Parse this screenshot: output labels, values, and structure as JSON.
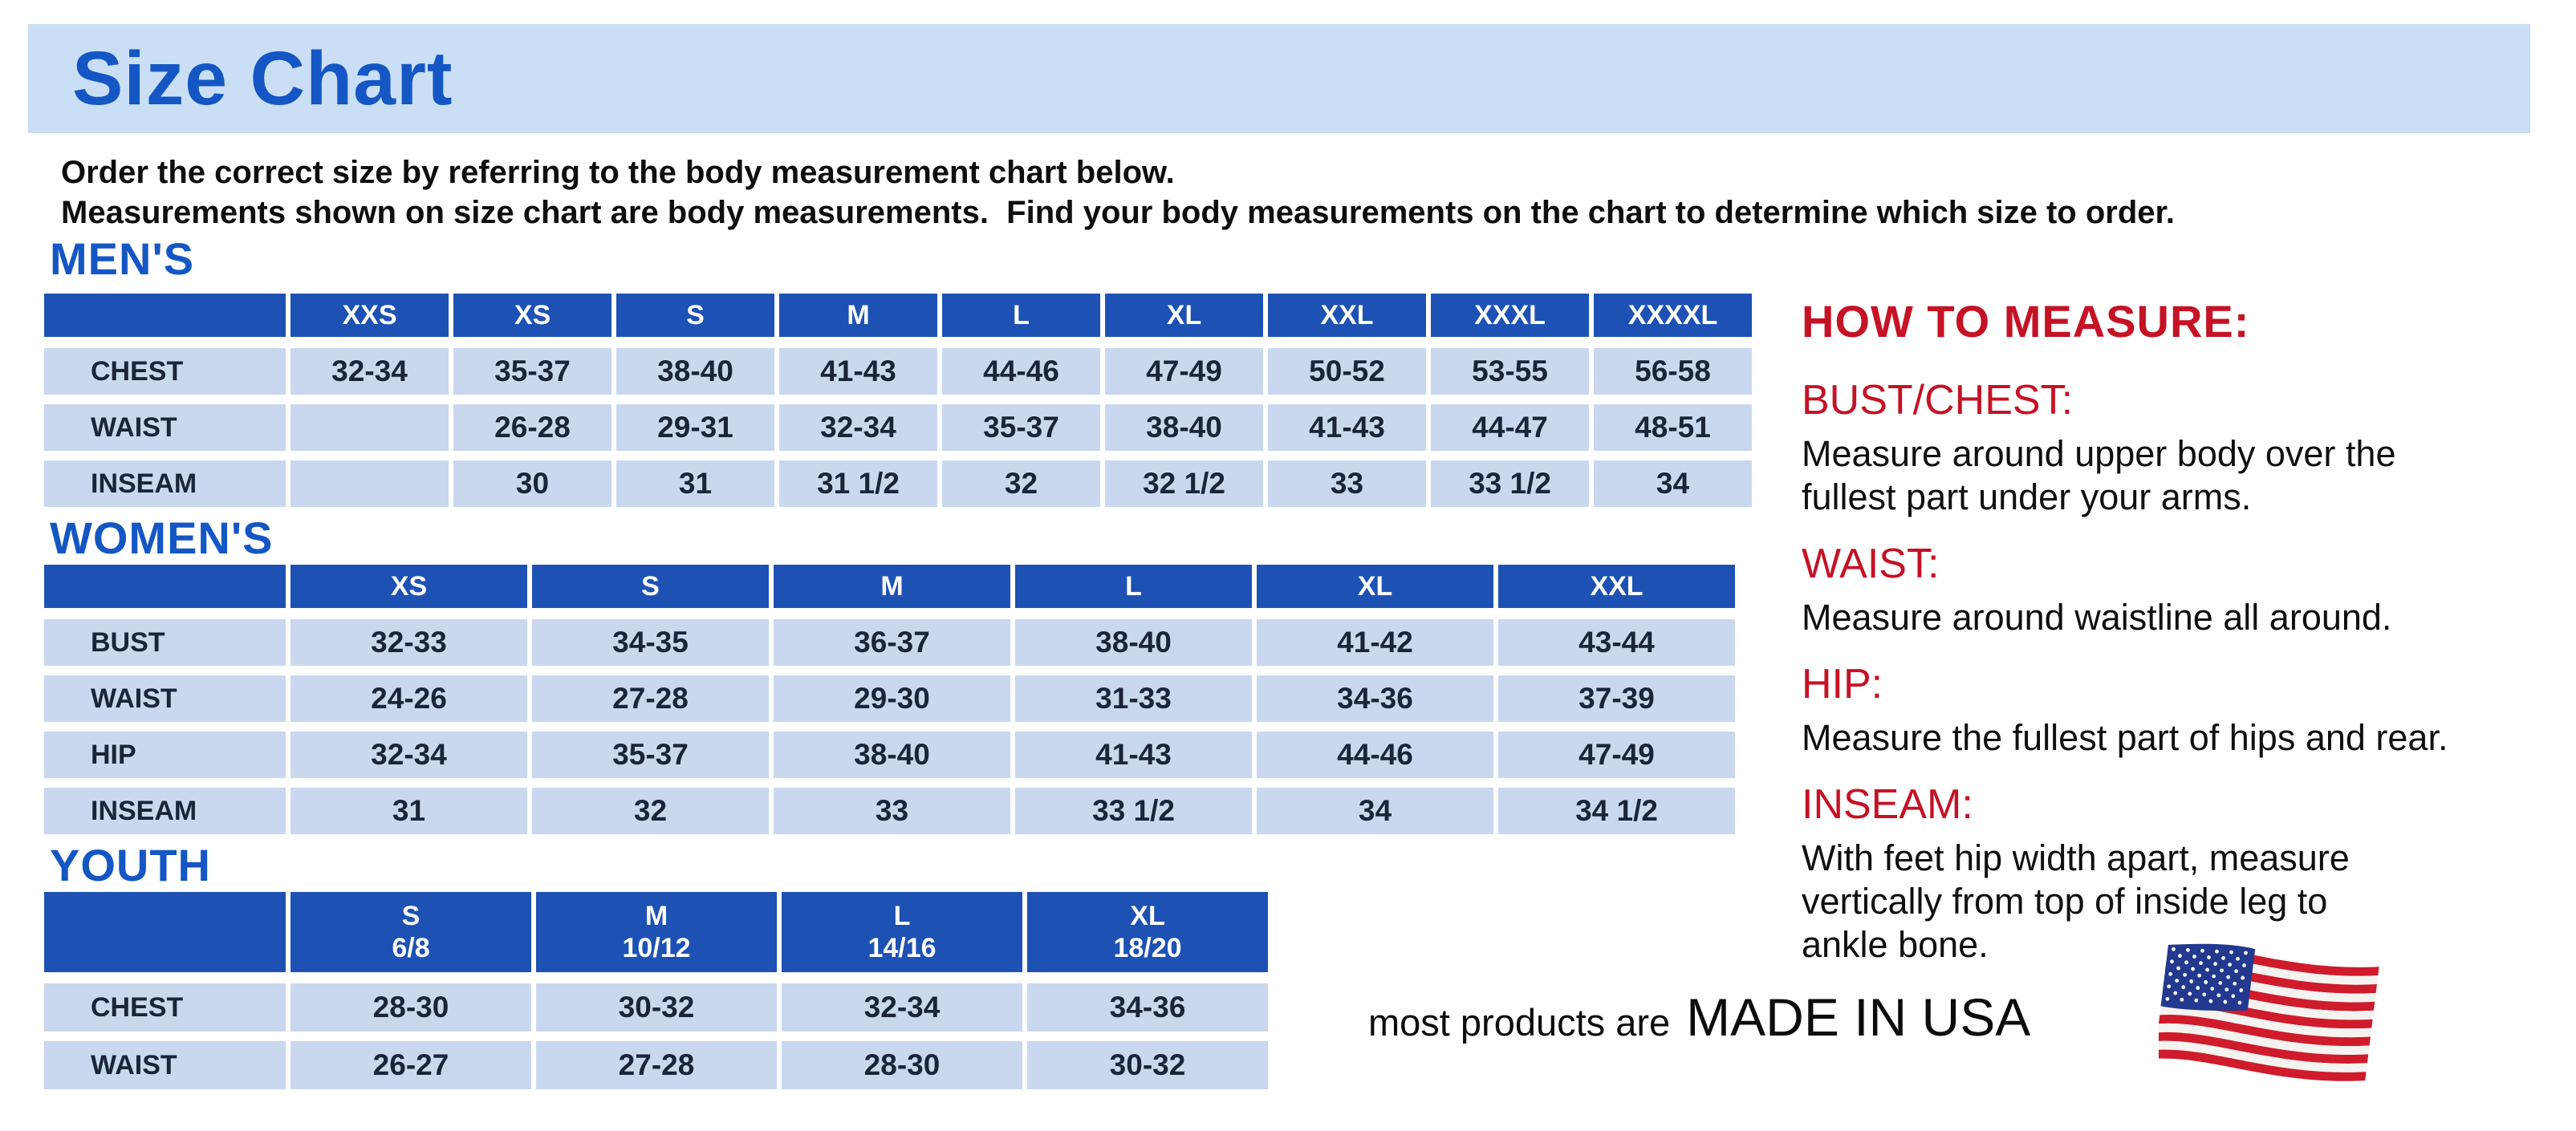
{
  "title_banner": {
    "title": "Size Chart"
  },
  "intro": {
    "lines": [
      "Order the correct size by referring to the body measurement chart below.",
      "Measurements shown on size chart are body measurements.  Find your body measurements on the chart to determine which size to order."
    ]
  },
  "tables": [
    {
      "id": "mens",
      "heading": "MEN'S",
      "columns": [
        "XXS",
        "XS",
        "S",
        "M",
        "L",
        "XL",
        "XXL",
        "XXXL",
        "XXXXL"
      ],
      "rows": [
        {
          "label": "CHEST",
          "values": [
            "32-34",
            "35-37",
            "38-40",
            "41-43",
            "44-46",
            "47-49",
            "50-52",
            "53-55",
            "56-58"
          ]
        },
        {
          "label": "WAIST",
          "values": [
            "",
            "26-28",
            "29-31",
            "32-34",
            "35-37",
            "38-40",
            "41-43",
            "44-47",
            "48-51"
          ]
        },
        {
          "label": "INSEAM",
          "values": [
            "",
            "30",
            "31",
            "31 1/2",
            "32",
            "32 1/2",
            "33",
            "33 1/2",
            "34"
          ]
        }
      ]
    },
    {
      "id": "womens",
      "heading": "WOMEN'S",
      "columns": [
        "XS",
        "S",
        "M",
        "L",
        "XL",
        "XXL"
      ],
      "rows": [
        {
          "label": "BUST",
          "values": [
            "32-33",
            "34-35",
            "36-37",
            "38-40",
            "41-42",
            "43-44"
          ]
        },
        {
          "label": "WAIST",
          "values": [
            "24-26",
            "27-28",
            "29-30",
            "31-33",
            "34-36",
            "37-39"
          ]
        },
        {
          "label": "HIP",
          "values": [
            "32-34",
            "35-37",
            "38-40",
            "41-43",
            "44-46",
            "47-49"
          ]
        },
        {
          "label": "INSEAM",
          "values": [
            "31",
            "32",
            "33",
            "33 1/2",
            "34",
            "34 1/2"
          ]
        }
      ]
    },
    {
      "id": "youth",
      "heading": "YOUTH",
      "columns": [
        "S\n6/8",
        "M\n10/12",
        "L\n14/16",
        "XL\n18/20"
      ],
      "rows": [
        {
          "label": "CHEST",
          "values": [
            "28-30",
            "30-32",
            "32-34",
            "34-36"
          ]
        },
        {
          "label": "WAIST",
          "values": [
            "26-27",
            "27-28",
            "28-30",
            "30-32"
          ]
        }
      ]
    }
  ],
  "how_to_measure": {
    "heading": "HOW TO MEASURE:",
    "items": [
      {
        "label": "BUST/CHEST:",
        "lines": [
          "Measure around upper body over the",
          "fullest part under your arms."
        ]
      },
      {
        "label": "WAIST:",
        "lines": [
          "Measure around waistline all around."
        ]
      },
      {
        "label": "HIP:",
        "lines": [
          "Measure the fullest part of hips and rear."
        ]
      },
      {
        "label": "INSEAM:",
        "lines": [
          "With feet hip width apart, measure",
          "vertically from top of inside leg to",
          "ankle bone."
        ]
      }
    ]
  },
  "footer": {
    "prefix": "most products are",
    "emphasis": "MADE IN USA",
    "flag_icon": "us-flag-icon"
  },
  "colors": {
    "banner_blue": "#cadef5",
    "heading_blue": "#1457c4",
    "header_cell_blue": "#1d52b4",
    "data_cell_blue": "#c9d8ef",
    "text_navy": "#1b2438",
    "accent_red": "#c51225",
    "flag_red": "#cf1b2b",
    "flag_blue": "#22398f"
  }
}
